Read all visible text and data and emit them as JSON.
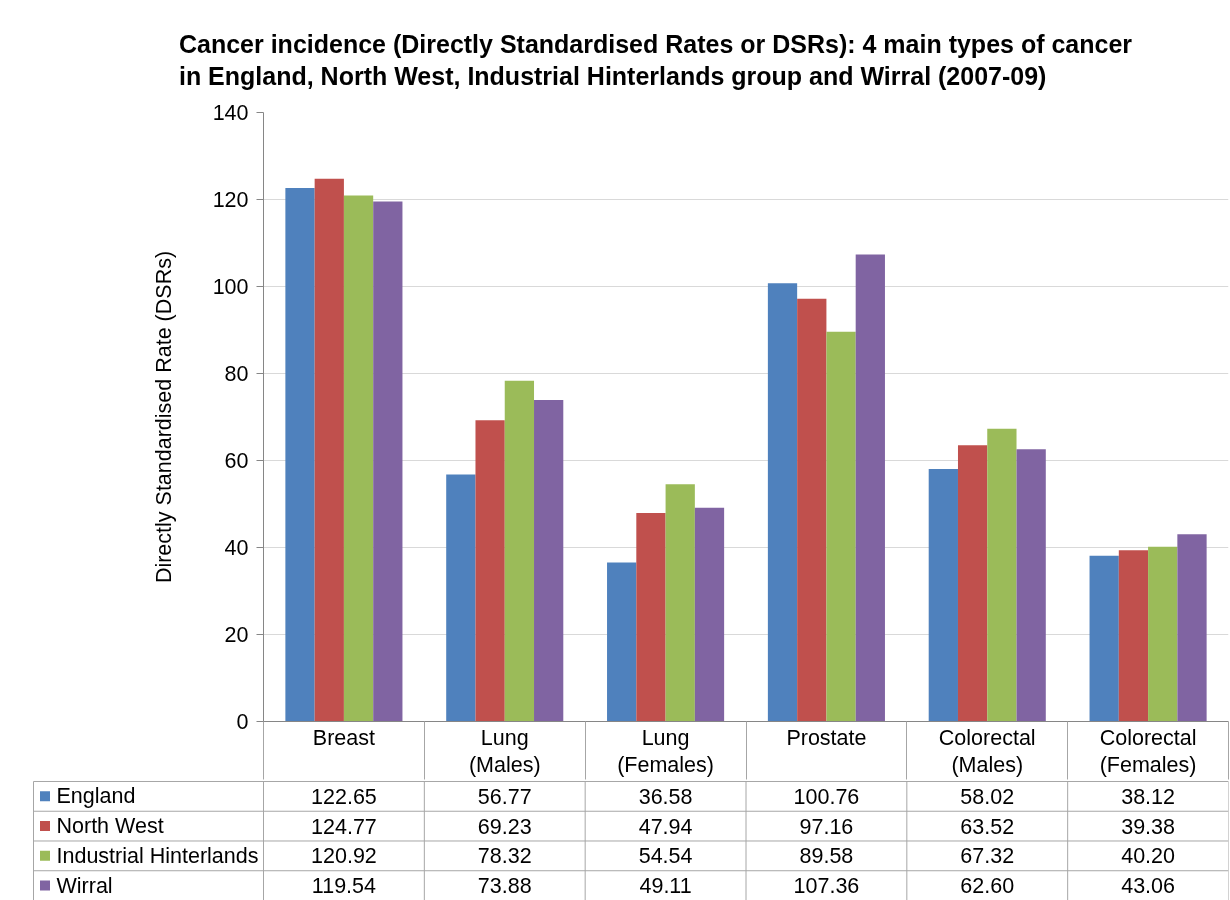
{
  "chart_data": {
    "type": "bar",
    "title": "Cancer incidence (Directly Standardised Rates or DSRs): 4 main types of cancer in England, North West, Industrial Hinterlands group and Wirral (2007-09)",
    "ylabel": "Directly Standardised Rate (DSRs)",
    "categories": [
      "Breast",
      "Lung (Males)",
      "Lung (Females)",
      "Prostate",
      "Colorectal (Males)",
      "Colorectal (Females)"
    ],
    "series": [
      {
        "name": "England",
        "color": "#4f81bd",
        "values": [
          122.65,
          56.77,
          36.58,
          100.76,
          58.02,
          38.12
        ],
        "value_labels": [
          "122.65",
          "56.77",
          "36.58",
          "100.76",
          "58.02",
          "38.12"
        ]
      },
      {
        "name": "North West",
        "color": "#c0504d",
        "values": [
          124.77,
          69.23,
          47.94,
          97.16,
          63.52,
          39.38
        ],
        "value_labels": [
          "124.77",
          "69.23",
          "47.94",
          "97.16",
          "63.52",
          "39.38"
        ]
      },
      {
        "name": "Industrial Hinterlands",
        "color": "#9bbb59",
        "values": [
          120.92,
          78.32,
          54.54,
          89.58,
          67.32,
          40.2
        ],
        "value_labels": [
          "120.92",
          "78.32",
          "54.54",
          "89.58",
          "67.32",
          "40.20"
        ]
      },
      {
        "name": "Wirral",
        "color": "#8064a2",
        "values": [
          119.54,
          73.88,
          49.11,
          107.36,
          62.6,
          43.06
        ],
        "value_labels": [
          "119.54",
          "73.88",
          "49.11",
          "107.36",
          "62.60",
          "43.06"
        ]
      }
    ],
    "ylim": [
      0,
      140
    ],
    "yticks": [
      0,
      20,
      40,
      60,
      80,
      100,
      120,
      140
    ],
    "grid": "y",
    "legend": "bottom"
  }
}
